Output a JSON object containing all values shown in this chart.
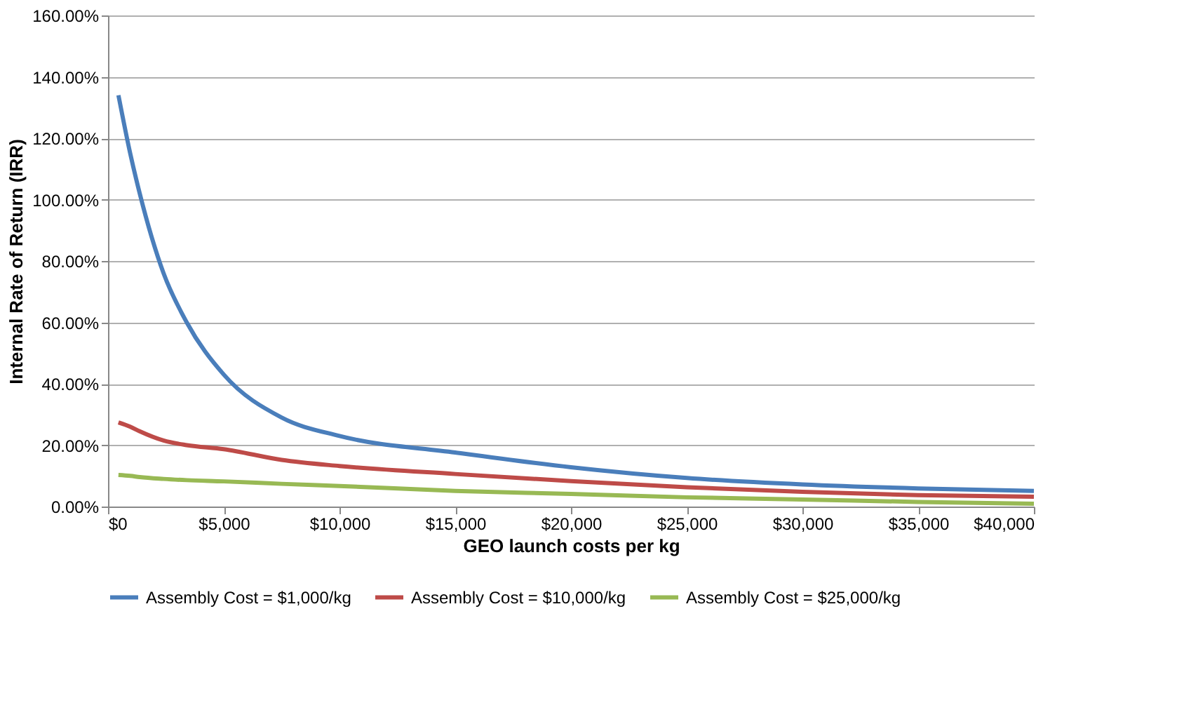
{
  "chart_data": {
    "type": "line",
    "xlabel": "GEO launch costs per kg",
    "ylabel": "Internal Rate of Return (IRR)",
    "xlim": [
      0,
      40000
    ],
    "xticks": [
      {
        "value": 0,
        "label": "$0"
      },
      {
        "value": 5000,
        "label": "$5,000"
      },
      {
        "value": 10000,
        "label": "$10,000"
      },
      {
        "value": 15000,
        "label": "$15,000"
      },
      {
        "value": 20000,
        "label": "$20,000"
      },
      {
        "value": 25000,
        "label": "$25,000"
      },
      {
        "value": 30000,
        "label": "$30,000"
      },
      {
        "value": 35000,
        "label": "$35,000"
      },
      {
        "value": 40000,
        "label": "$40,000"
      }
    ],
    "ylim": [
      0,
      160
    ],
    "yticks": [
      {
        "value": 0,
        "label": "0.00%"
      },
      {
        "value": 20,
        "label": "20.00%"
      },
      {
        "value": 40,
        "label": "40.00%"
      },
      {
        "value": 60,
        "label": "60.00%"
      },
      {
        "value": 80,
        "label": "80.00%"
      },
      {
        "value": 100,
        "label": "100.00%"
      },
      {
        "value": 120,
        "label": "120.00%"
      },
      {
        "value": 140,
        "label": "140.00%"
      },
      {
        "value": 160,
        "label": "160.00%"
      }
    ],
    "x": [
      450,
      960,
      1370,
      2400,
      3400,
      5000,
      7500,
      10000,
      15000,
      20000,
      25000,
      30000,
      35000,
      40000
    ],
    "series": [
      {
        "name": "Assembly Cost = $1,000/kg",
        "color": "#4a7ebb",
        "values": [
          134,
          115,
          102,
          76,
          60,
          43,
          29,
          23,
          17.6,
          12.8,
          9.3,
          7.2,
          5.9,
          5.1
        ]
      },
      {
        "name": "Assembly Cost = $10,000/kg",
        "color": "#be4b48",
        "values": [
          27.4,
          26,
          24.5,
          21.5,
          20,
          18.7,
          15.2,
          13.2,
          10.6,
          8.3,
          6.3,
          4.8,
          3.7,
          3.2
        ]
      },
      {
        "name": "Assembly Cost = $25,000/kg",
        "color": "#98b954",
        "values": [
          10.3,
          10,
          9.6,
          9,
          8.6,
          8.2,
          7.4,
          6.7,
          5.1,
          4.1,
          3.0,
          2.3,
          1.5,
          0.9
        ]
      }
    ],
    "grid": "y",
    "legend": "bottom",
    "marker": "none",
    "line_style": "solid"
  }
}
